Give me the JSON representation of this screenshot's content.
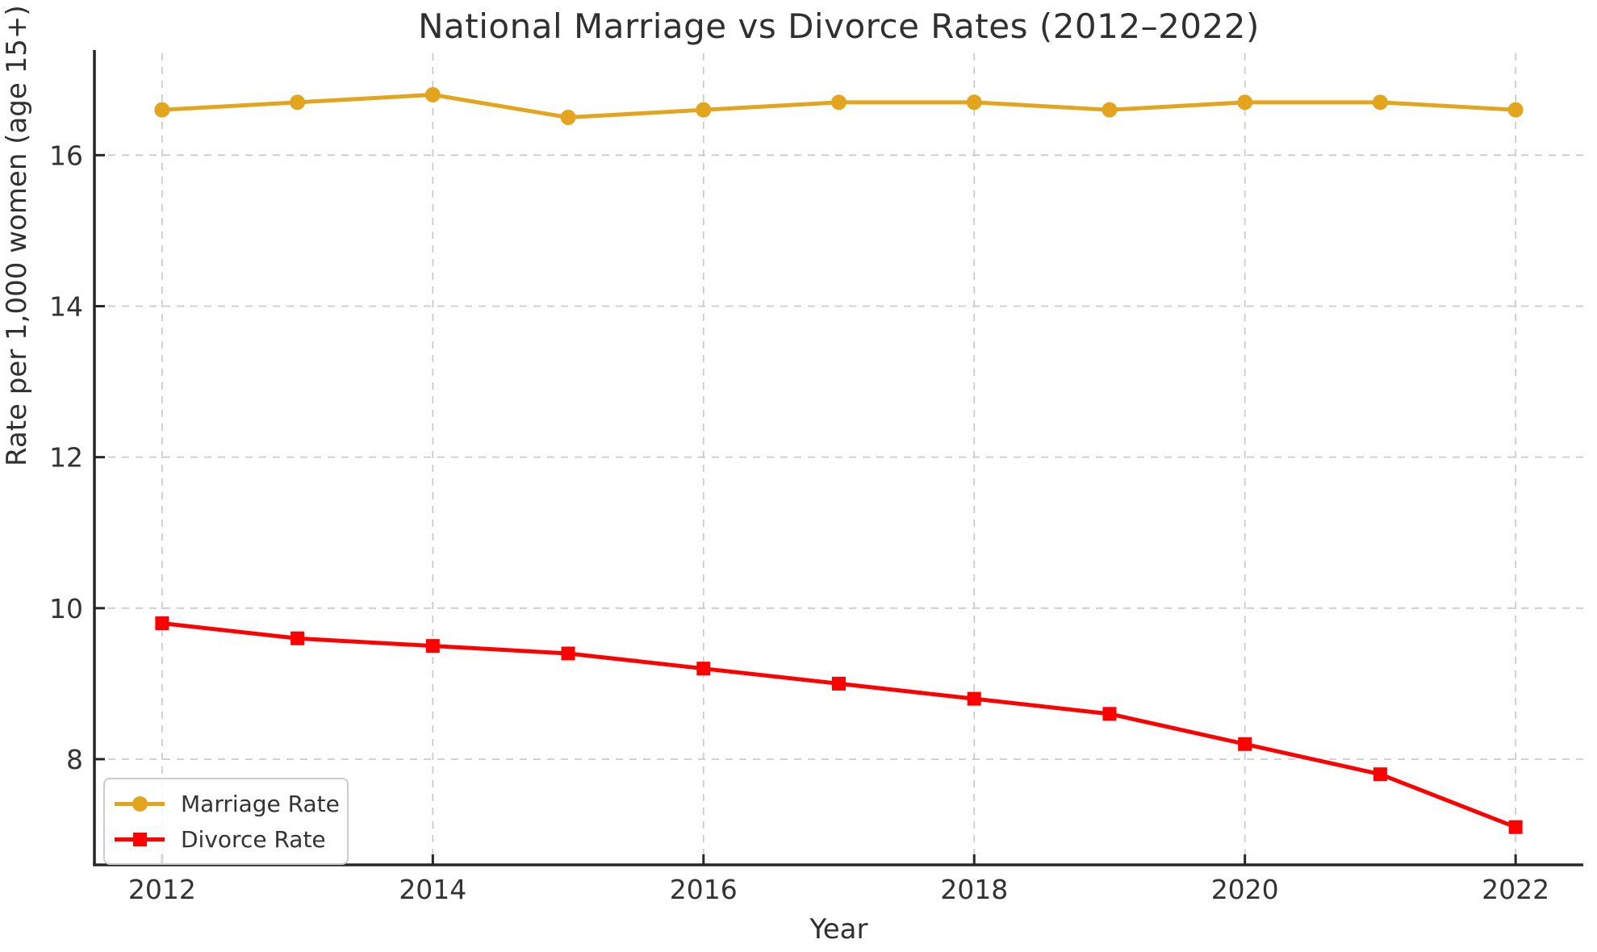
{
  "chart_data": {
    "type": "line",
    "title": "National Marriage vs Divorce Rates (2012–2022)",
    "xlabel": "Year",
    "ylabel": "Rate per 1,000 women (age 15+)",
    "x": [
      2012,
      2013,
      2014,
      2015,
      2016,
      2017,
      2018,
      2019,
      2020,
      2021,
      2022
    ],
    "series": [
      {
        "name": "Marriage Rate",
        "color": "#E3A41E",
        "marker": "circle",
        "values": [
          16.6,
          16.7,
          16.8,
          16.5,
          16.6,
          16.7,
          16.7,
          16.6,
          16.7,
          16.7,
          16.6
        ]
      },
      {
        "name": "Divorce Rate",
        "color": "#FF0000",
        "marker": "square",
        "values": [
          9.8,
          9.6,
          9.5,
          9.4,
          9.2,
          9.0,
          8.8,
          8.6,
          8.2,
          7.8,
          7.1
        ]
      }
    ],
    "x_ticks": [
      2012,
      2014,
      2016,
      2018,
      2020,
      2022
    ],
    "x_tick_labels": [
      "2012",
      "2014",
      "2016",
      "2018",
      "2020",
      "2022"
    ],
    "y_ticks": [
      8,
      10,
      12,
      14,
      16
    ],
    "y_tick_labels": [
      "8",
      "10",
      "12",
      "14",
      "16"
    ],
    "xlim": [
      2011.5,
      2022.5
    ],
    "ylim": [
      6.6,
      17.35
    ],
    "grid": true,
    "grid_color": "#cbcbcb",
    "spine_color": "#262626",
    "legend_position": "lower left"
  }
}
